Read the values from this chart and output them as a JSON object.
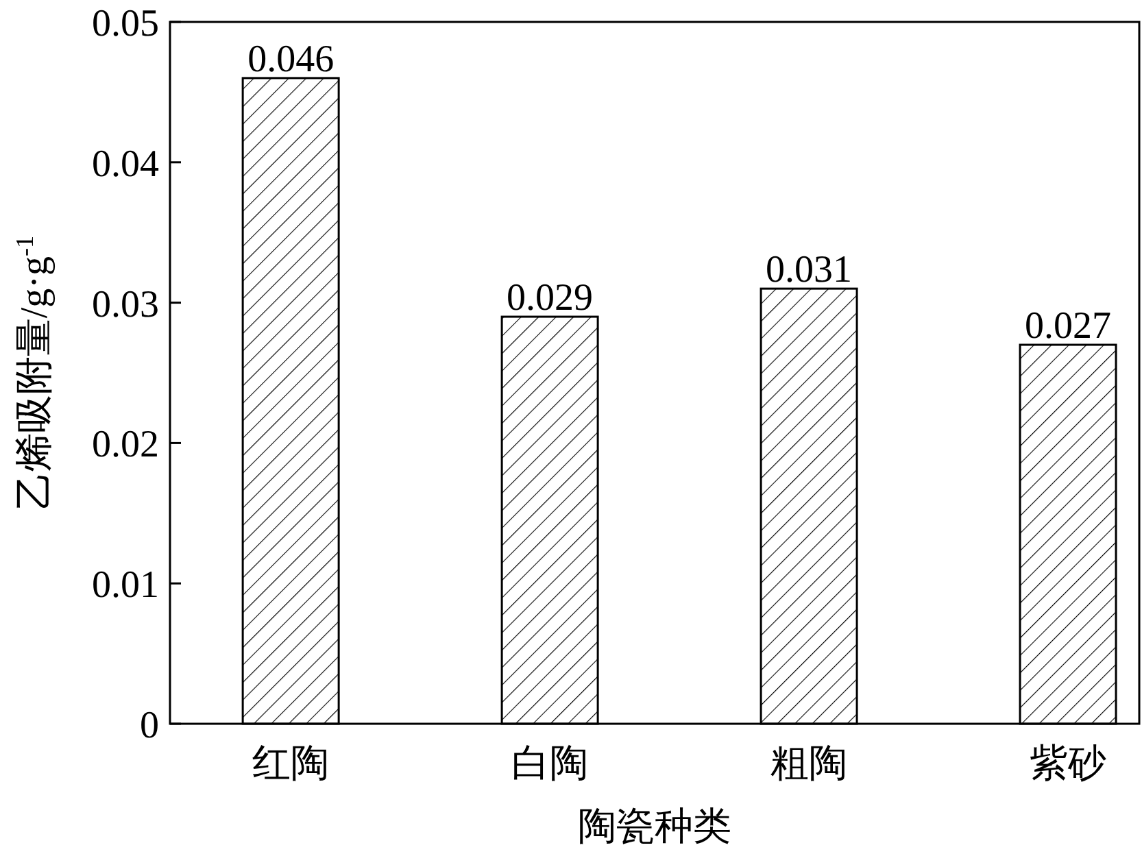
{
  "chart_data": {
    "type": "bar",
    "xlabel": "陶瓷种类",
    "ylabel": "乙烯吸附量/g·g$^{-1}$",
    "categories": [
      "红陶",
      "白陶",
      "粗陶",
      "紫砂"
    ],
    "values": [
      0.046,
      0.029,
      0.031,
      0.027
    ],
    "color": "#000000",
    "ylim": [
      0,
      0.05
    ],
    "yticks": [
      0,
      0.01,
      0.02,
      0.03,
      0.04,
      0.05
    ],
    "data_labels": true
  }
}
